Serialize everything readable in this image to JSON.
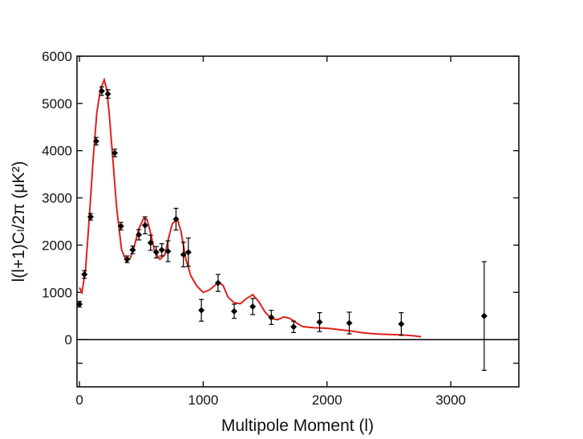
{
  "chart_data": {
    "type": "scatter",
    "title": "",
    "xlabel": "Multipole Moment (l)",
    "ylabel": "l(l+1)Cₗ/2π (μK²)",
    "xlim": [
      -20,
      3550
    ],
    "ylim": [
      -1000,
      6000
    ],
    "x_ticks": [
      0,
      1000,
      2000,
      3000
    ],
    "x_tick_labels": [
      "0",
      "1000",
      "2000",
      "3000"
    ],
    "y_ticks": [
      0,
      1000,
      2000,
      3000,
      4000,
      5000,
      6000
    ],
    "y_tick_labels": [
      "0",
      "1000",
      "2000",
      "3000",
      "4000",
      "5000",
      "6000"
    ],
    "zero_line": 0,
    "grid": false,
    "colors": {
      "model": "#e0201c",
      "data": "#000000",
      "axis": "#111111"
    },
    "series": [
      {
        "kind": "points-with-errorbars",
        "points": [
          {
            "x": 0,
            "y": 750,
            "err": 60
          },
          {
            "x": 40,
            "y": 1380,
            "err": 80
          },
          {
            "x": 90,
            "y": 2600,
            "err": 70
          },
          {
            "x": 135,
            "y": 4200,
            "err": 80
          },
          {
            "x": 180,
            "y": 5260,
            "err": 90
          },
          {
            "x": 230,
            "y": 5200,
            "err": 90
          },
          {
            "x": 285,
            "y": 3950,
            "err": 80
          },
          {
            "x": 335,
            "y": 2400,
            "err": 80
          },
          {
            "x": 385,
            "y": 1700,
            "err": 70
          },
          {
            "x": 430,
            "y": 1900,
            "err": 80
          },
          {
            "x": 480,
            "y": 2220,
            "err": 110
          },
          {
            "x": 530,
            "y": 2420,
            "err": 180
          },
          {
            "x": 575,
            "y": 2050,
            "err": 160
          },
          {
            "x": 620,
            "y": 1850,
            "err": 120
          },
          {
            "x": 665,
            "y": 1900,
            "err": 130
          },
          {
            "x": 715,
            "y": 1870,
            "err": 220
          },
          {
            "x": 780,
            "y": 2550,
            "err": 230
          },
          {
            "x": 840,
            "y": 1800,
            "err": 260
          },
          {
            "x": 880,
            "y": 1850,
            "err": 300
          },
          {
            "x": 985,
            "y": 620,
            "err": 230
          },
          {
            "x": 1120,
            "y": 1200,
            "err": 180
          },
          {
            "x": 1250,
            "y": 600,
            "err": 150
          },
          {
            "x": 1400,
            "y": 700,
            "err": 170
          },
          {
            "x": 1550,
            "y": 470,
            "err": 150
          },
          {
            "x": 1730,
            "y": 270,
            "err": 120
          },
          {
            "x": 1940,
            "y": 370,
            "err": 200
          },
          {
            "x": 2180,
            "y": 350,
            "err": 230
          },
          {
            "x": 2600,
            "y": 330,
            "err": 240
          },
          {
            "x": 3270,
            "y": 500,
            "err": 1150
          }
        ]
      },
      {
        "kind": "model-line",
        "x": [
          0,
          20,
          50,
          80,
          110,
          140,
          170,
          200,
          220,
          240,
          270,
          300,
          340,
          380,
          410,
          440,
          480,
          520,
          545,
          570,
          610,
          650,
          690,
          720,
          750,
          790,
          820,
          860,
          900,
          950,
          1000,
          1050,
          1100,
          1130,
          1160,
          1200,
          1250,
          1300,
          1350,
          1400,
          1450,
          1500,
          1550,
          1600,
          1650,
          1700,
          1750,
          1800,
          1850,
          1900,
          2000,
          2100,
          2200,
          2300,
          2400,
          2500,
          2600,
          2700,
          2760
        ],
        "y": [
          1100,
          1000,
          1500,
          2600,
          3800,
          4800,
          5300,
          5500,
          5300,
          4800,
          3800,
          2800,
          1900,
          1650,
          1720,
          1950,
          2350,
          2570,
          2550,
          2300,
          1850,
          1700,
          1800,
          2150,
          2450,
          2560,
          2300,
          1700,
          1350,
          1130,
          1000,
          1050,
          1160,
          1200,
          1150,
          900,
          780,
          760,
          870,
          950,
          800,
          580,
          450,
          420,
          480,
          450,
          360,
          280,
          260,
          250,
          240,
          210,
          180,
          140,
          120,
          110,
          100,
          80,
          60
        ]
      }
    ]
  }
}
